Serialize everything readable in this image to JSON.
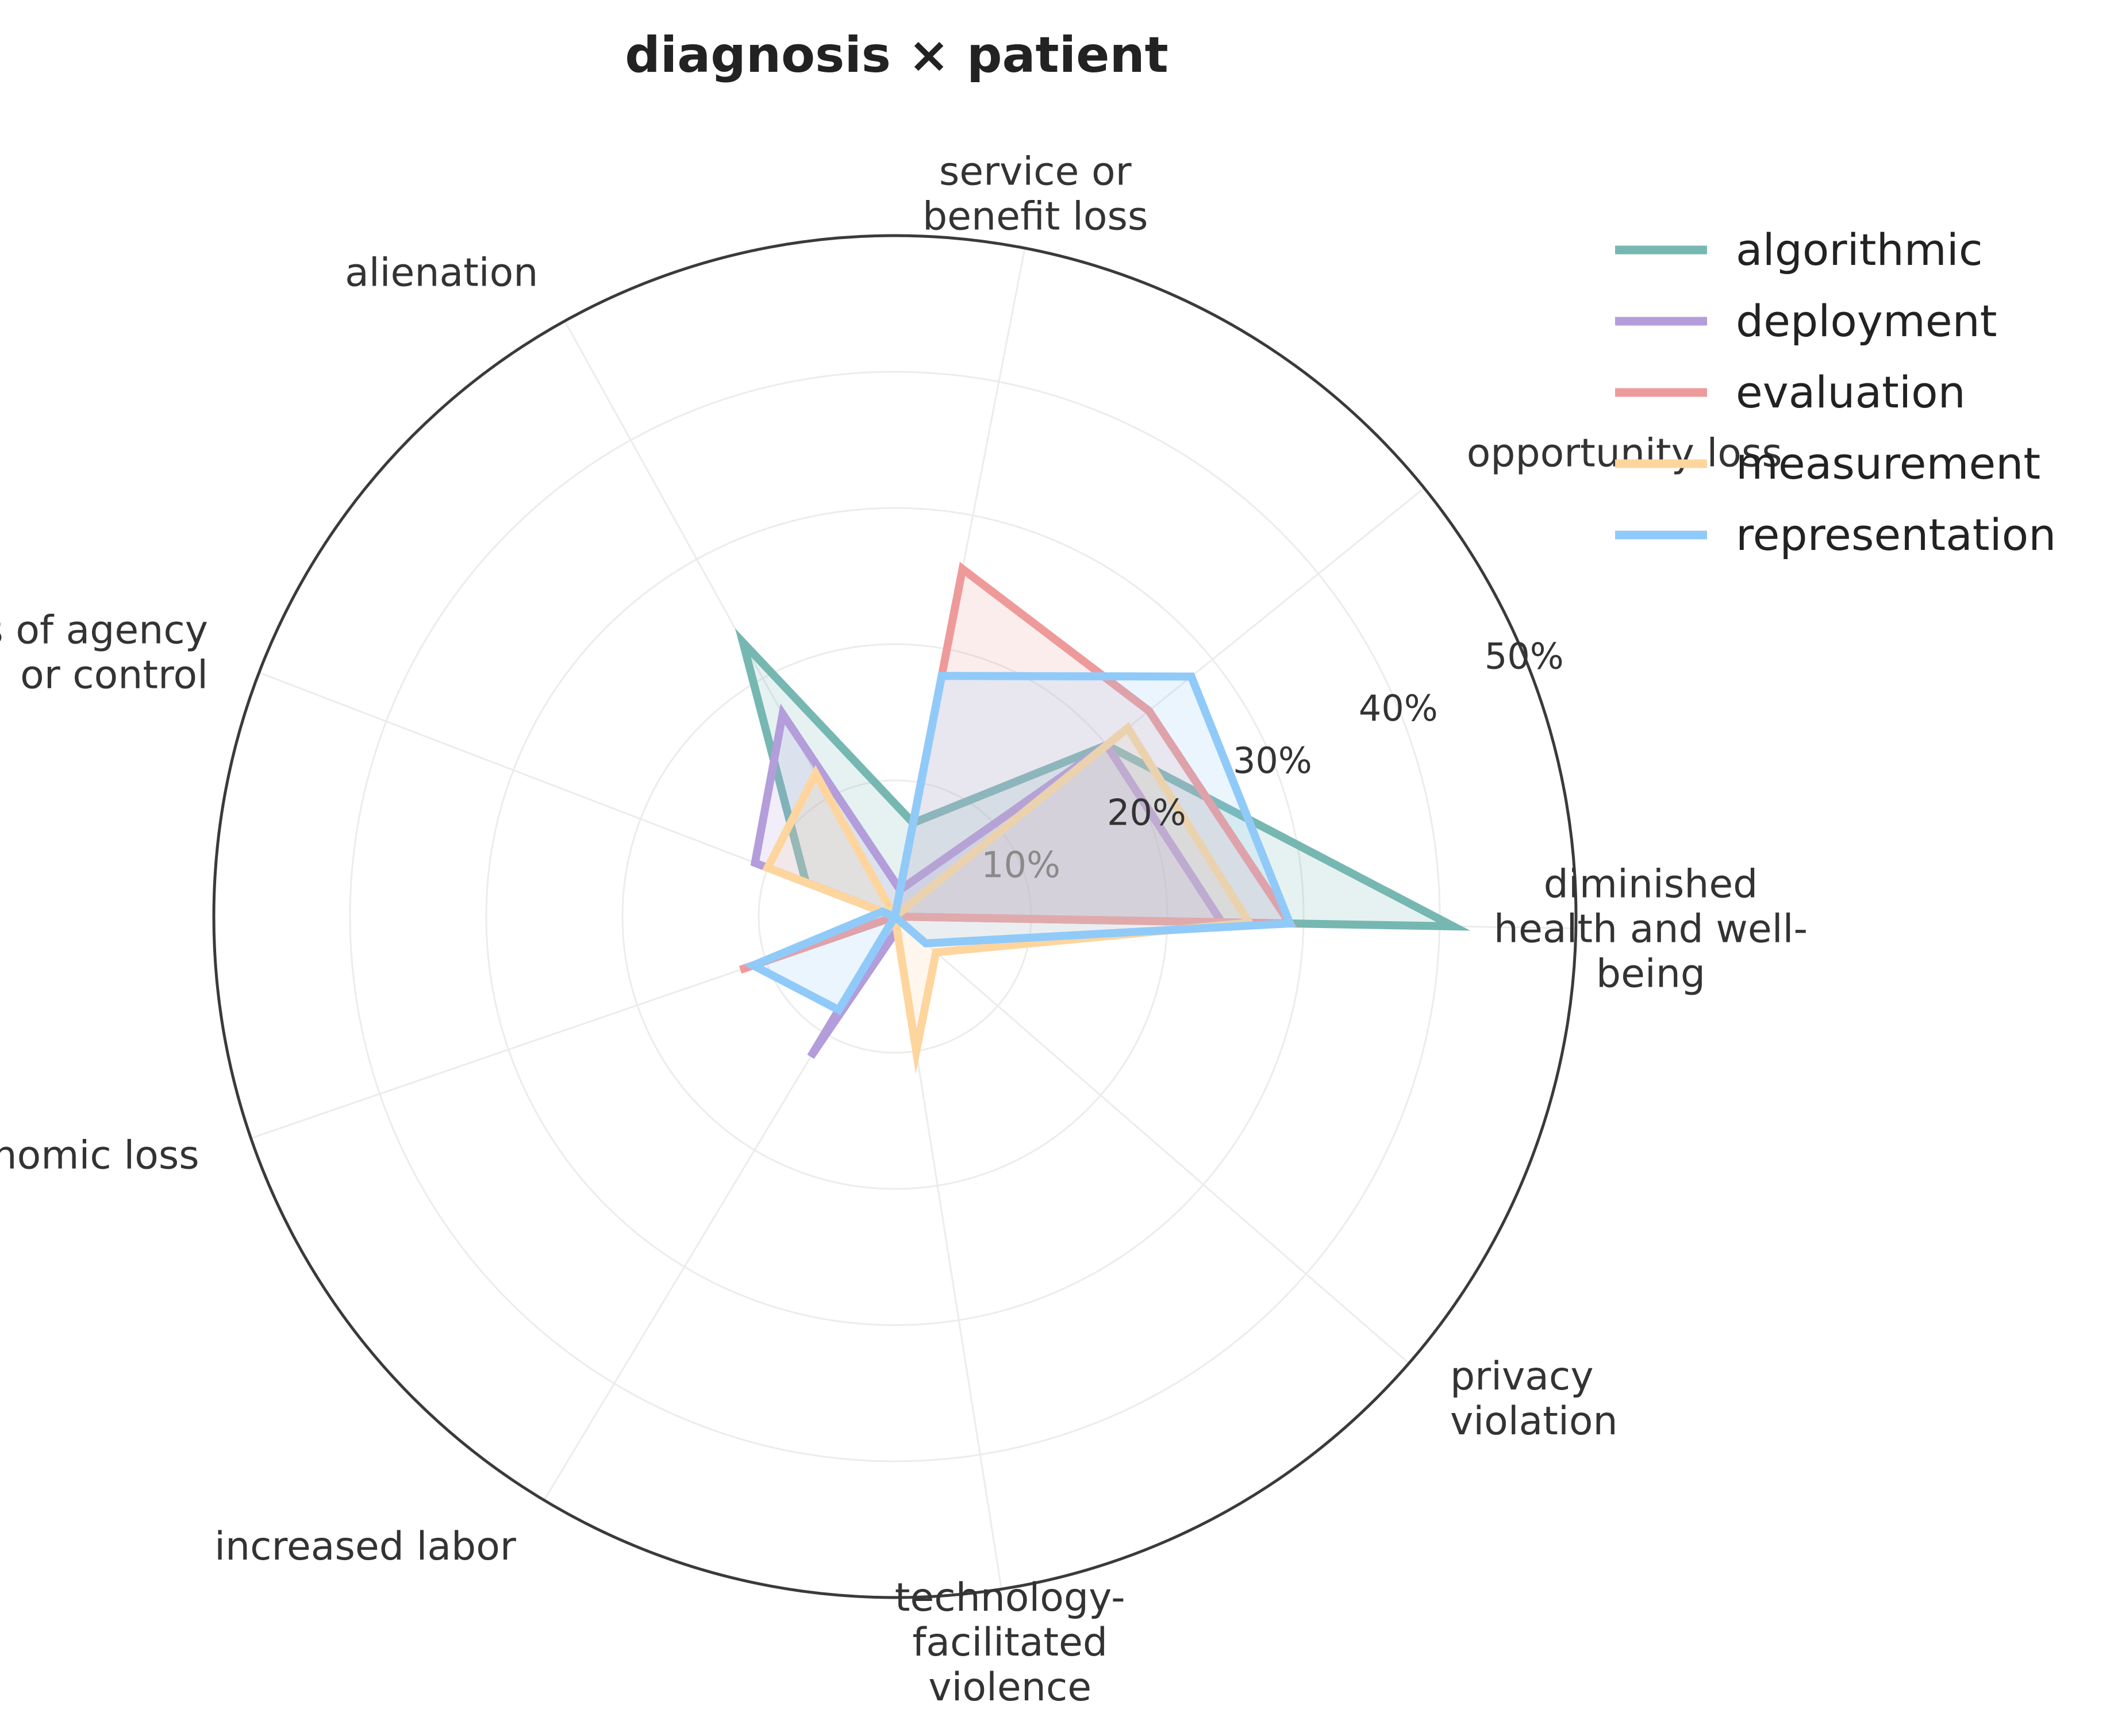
{
  "chart_data": {
    "type": "radar",
    "title": "diagnosis × patient",
    "categories": [
      "diminished\nhealth and well-\nbeing",
      "opportunity loss",
      "service or\nbenefit loss",
      "alienation",
      "loss of agency\nor control",
      "economic loss",
      "increased labor",
      "technology-\nfacilitated\nviolence",
      "privacy\nviolation"
    ],
    "r_ticks": [
      10,
      20,
      30,
      40,
      50
    ],
    "r_tick_labels": [
      "10%",
      "20%",
      "30%",
      "40%",
      "50%"
    ],
    "r_max": 50,
    "grid": true,
    "legend_position": "top-right",
    "series": [
      {
        "name": "algorithmic",
        "color": "#76b7b2",
        "values": [
          41,
          20,
          7,
          23,
          7,
          0,
          0,
          0,
          0
        ]
      },
      {
        "name": "deployment",
        "color": "#b39ddb",
        "values": [
          24,
          20,
          2,
          17,
          11,
          0,
          12,
          1,
          0
        ]
      },
      {
        "name": "evaluation",
        "color": "#ef9a9a",
        "values": [
          29,
          24,
          26,
          0,
          0,
          12,
          0,
          0,
          0
        ]
      },
      {
        "name": "measurement",
        "color": "#ffd59e",
        "values": [
          26,
          22,
          0,
          12,
          10,
          0,
          0,
          10,
          4
        ]
      },
      {
        "name": "representation",
        "color": "#90caf9",
        "values": [
          29,
          28,
          18,
          0,
          1,
          11,
          8,
          0,
          3
        ]
      }
    ]
  }
}
